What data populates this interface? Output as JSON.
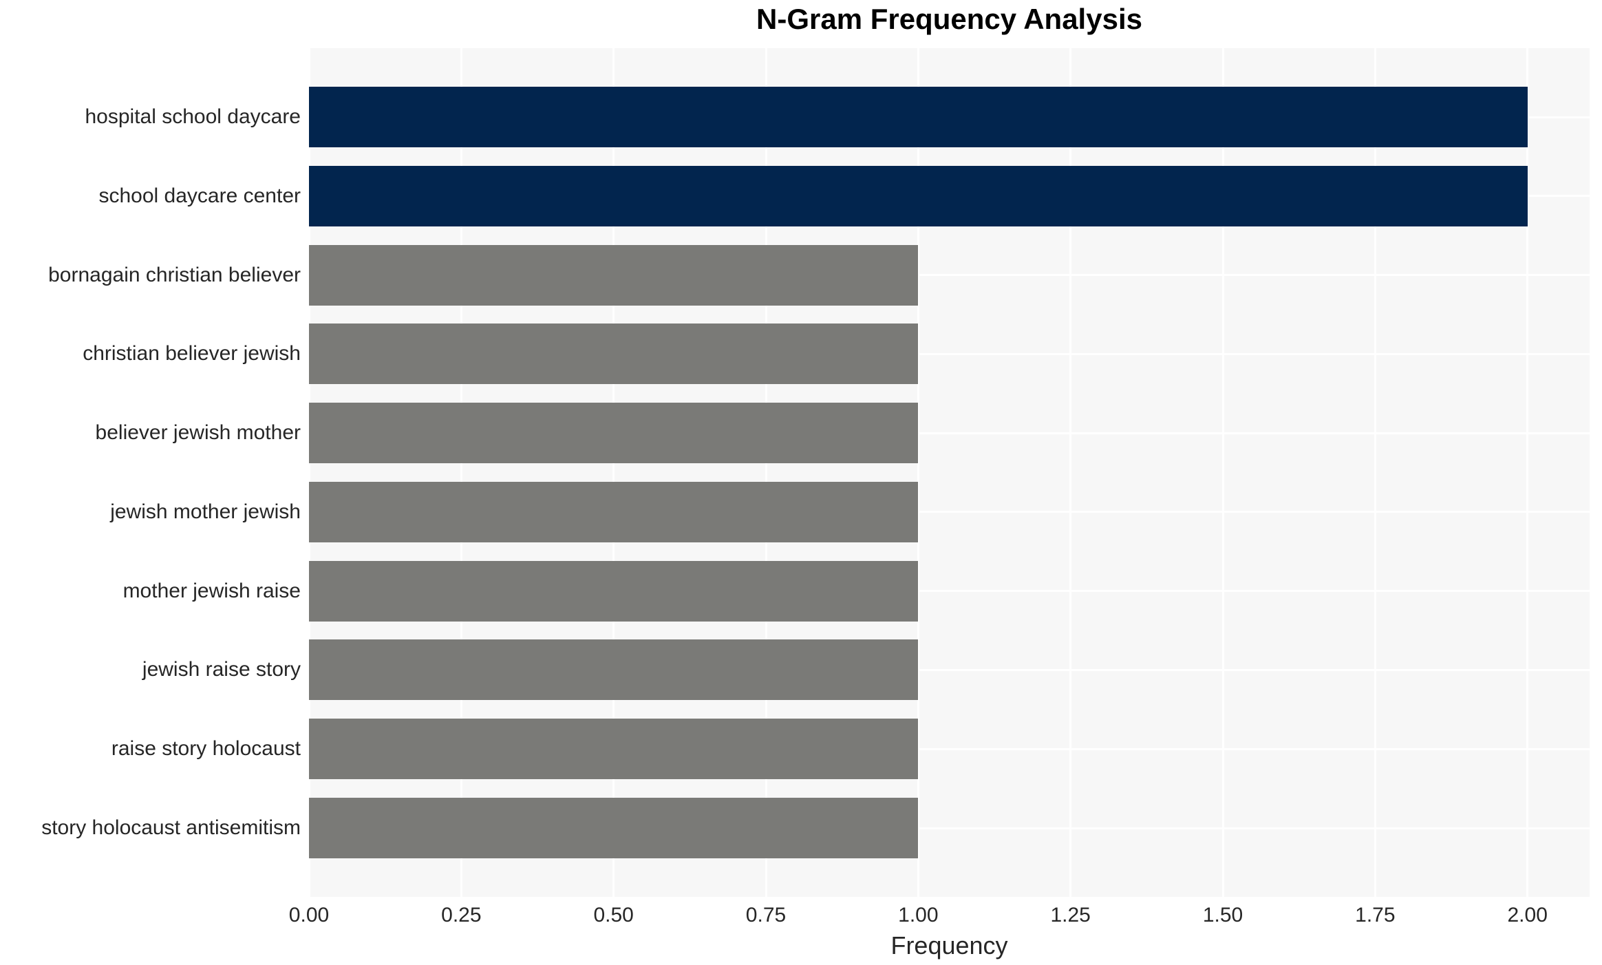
{
  "title": "N-Gram Frequency Analysis",
  "chart_data": {
    "type": "bar",
    "orientation": "horizontal",
    "title": "N-Gram Frequency Analysis",
    "xlabel": "Frequency",
    "ylabel": "",
    "categories": [
      "hospital school daycare",
      "school daycare center",
      "bornagain christian believer",
      "christian believer jewish",
      "believer jewish mother",
      "jewish mother jewish",
      "mother jewish raise",
      "jewish raise story",
      "raise story holocaust",
      "story holocaust antisemitism"
    ],
    "values": [
      2,
      2,
      1,
      1,
      1,
      1,
      1,
      1,
      1,
      1
    ],
    "bar_colors": [
      "#02254E",
      "#02254E",
      "#7A7A77",
      "#7A7A77",
      "#7A7A77",
      "#7A7A77",
      "#7A7A77",
      "#7A7A77",
      "#7A7A77",
      "#7A7A77"
    ],
    "xlim": [
      0,
      2.102
    ],
    "x_ticks": [
      {
        "value": 0.0,
        "label": "0.00"
      },
      {
        "value": 0.25,
        "label": "0.25"
      },
      {
        "value": 0.5,
        "label": "0.50"
      },
      {
        "value": 0.75,
        "label": "0.75"
      },
      {
        "value": 1.0,
        "label": "1.00"
      },
      {
        "value": 1.25,
        "label": "1.25"
      },
      {
        "value": 1.5,
        "label": "1.50"
      },
      {
        "value": 1.75,
        "label": "1.75"
      },
      {
        "value": 2.0,
        "label": "2.00"
      }
    ],
    "legend": null,
    "grid": "on",
    "colors": {
      "highlight": "#02254E",
      "default": "#7A7A77",
      "panel_background": "#F7F7F7",
      "gridline": "#FFFFFF",
      "tick_text": "#262626",
      "title_text": "#000000"
    }
  }
}
